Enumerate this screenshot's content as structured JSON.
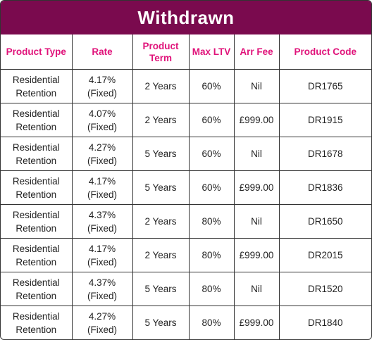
{
  "title": "Withdrawn",
  "colors": {
    "header_bg": "#7a0a4e",
    "header_text": "#e0137a"
  },
  "columns": [
    "Product Type",
    "Rate",
    "Product Term",
    "Max LTV",
    "Arr Fee",
    "Product Code"
  ],
  "rows": [
    {
      "type": [
        "Residential",
        "Retention"
      ],
      "rate": [
        "4.17%",
        "(Fixed)"
      ],
      "term": "2 Years",
      "ltv": "60%",
      "fee": "Nil",
      "code": "DR1765"
    },
    {
      "type": [
        "Residential",
        "Retention"
      ],
      "rate": [
        "4.07%",
        "(Fixed)"
      ],
      "term": "2 Years",
      "ltv": "60%",
      "fee": "£999.00",
      "code": "DR1915"
    },
    {
      "type": [
        "Residential",
        "Retention"
      ],
      "rate": [
        "4.27%",
        "(Fixed)"
      ],
      "term": "5 Years",
      "ltv": "60%",
      "fee": "Nil",
      "code": "DR1678"
    },
    {
      "type": [
        "Residential",
        "Retention"
      ],
      "rate": [
        "4.17%",
        "(Fixed)"
      ],
      "term": "5 Years",
      "ltv": "60%",
      "fee": "£999.00",
      "code": "DR1836"
    },
    {
      "type": [
        "Residential",
        "Retention"
      ],
      "rate": [
        "4.37%",
        "(Fixed)"
      ],
      "term": "2 Years",
      "ltv": "80%",
      "fee": "Nil",
      "code": "DR1650"
    },
    {
      "type": [
        "Residential",
        "Retention"
      ],
      "rate": [
        "4.17%",
        "(Fixed)"
      ],
      "term": "2 Years",
      "ltv": "80%",
      "fee": "£999.00",
      "code": "DR2015"
    },
    {
      "type": [
        "Residential",
        "Retention"
      ],
      "rate": [
        "4.37%",
        "(Fixed)"
      ],
      "term": "5 Years",
      "ltv": "80%",
      "fee": "Nil",
      "code": "DR1520"
    },
    {
      "type": [
        "Residential",
        "Retention"
      ],
      "rate": [
        "4.27%",
        "(Fixed)"
      ],
      "term": "5 Years",
      "ltv": "80%",
      "fee": "£999.00",
      "code": "DR1840"
    }
  ]
}
